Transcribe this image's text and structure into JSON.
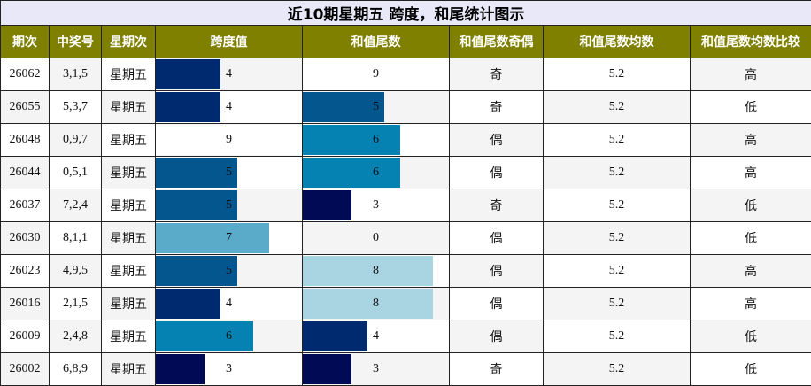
{
  "title": "近10期星期五 跨度，和尾统计图示",
  "columns": [
    "期次",
    "中奖号",
    "星期次",
    "跨度值",
    "和值尾数",
    "和值尾数奇偶",
    "和值尾数均数",
    "和值尾数均数比较"
  ],
  "rows": [
    [
      "26062",
      "3,1,5",
      "星期五",
      4,
      9,
      "奇",
      5.2,
      "高"
    ],
    [
      "26055",
      "5,3,7",
      "星期五",
      4,
      5,
      "奇",
      5.2,
      "低"
    ],
    [
      "26048",
      "0,9,7",
      "星期五",
      9,
      6,
      "偶",
      5.2,
      "高"
    ],
    [
      "26044",
      "0,5,1",
      "星期五",
      5,
      6,
      "偶",
      5.2,
      "高"
    ],
    [
      "26037",
      "7,2,4",
      "星期五",
      5,
      3,
      "奇",
      5.2,
      "低"
    ],
    [
      "26030",
      "8,1,1",
      "星期五",
      7,
      0,
      "偶",
      5.2,
      "低"
    ],
    [
      "26023",
      "4,9,5",
      "星期五",
      5,
      8,
      "偶",
      5.2,
      "高"
    ],
    [
      "26016",
      "2,1,5",
      "星期五",
      4,
      8,
      "偶",
      5.2,
      "高"
    ],
    [
      "26009",
      "2,4,8",
      "星期五",
      6,
      4,
      "偶",
      5.2,
      "低"
    ],
    [
      "26002",
      "6,8,9",
      "星期五",
      3,
      3,
      "奇",
      5.2,
      "低"
    ]
  ],
  "bar_columns": [
    3,
    4
  ],
  "bar_scale": [
    0,
    9
  ],
  "bar_colors": {
    "0": "#ffffff",
    "3": "#000a55",
    "4": "#002a70",
    "5": "#04568f",
    "6": "#0582b2",
    "7": "#5aabc9",
    "8": "#a9d5e3",
    "9": "#ffffff"
  },
  "header_color": "#808000",
  "title_color": "#e8e8f8"
}
